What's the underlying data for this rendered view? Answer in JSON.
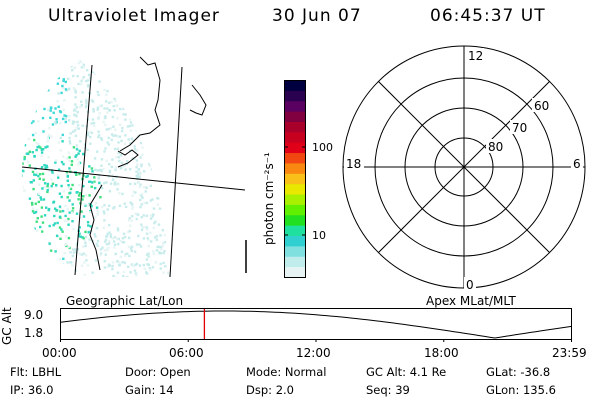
{
  "header": {
    "instrument": "Ultraviolet Imager",
    "date": "30 Jun 07",
    "time": "06:45:37 UT"
  },
  "colorbar": {
    "unit_label": "photon cm⁻²s⁻¹",
    "ticks": [
      "100",
      "10"
    ],
    "colors": [
      "#000040",
      "#2a0050",
      "#5a0060",
      "#800040",
      "#a8002a",
      "#c80020",
      "#e00018",
      "#f04810",
      "#f88810",
      "#f8c018",
      "#e8e800",
      "#a8f000",
      "#60f000",
      "#20e020",
      "#20e0a0",
      "#30d0d0",
      "#80e0e0",
      "#c0ecec",
      "#e8f4f4"
    ]
  },
  "polar_plot": {
    "mlt_labels": {
      "top": "12",
      "bottom": "0",
      "left": "18",
      "right": "6"
    },
    "mlat_labels": [
      "60",
      "70",
      "80"
    ]
  },
  "timeline": {
    "ylabel": "GC Alt",
    "yticks": [
      "9.0",
      "1.8"
    ],
    "left_caption": "Geographic Lat/Lon",
    "right_caption": "Apex MLat/MLT",
    "xticks": [
      "00:00",
      "06:00",
      "12:00",
      "18:00",
      "23:59"
    ],
    "current_time_fraction": 0.2816
  },
  "status": {
    "row1": [
      {
        "key": "Flt:",
        "value": "LBHL"
      },
      {
        "key": "Door:",
        "value": "Open"
      },
      {
        "key": "Mode:",
        "value": "Normal"
      },
      {
        "key": "GC Alt:",
        "value": "4.1 Re"
      },
      {
        "key": "GLat:",
        "value": "-36.8"
      }
    ],
    "row2": [
      {
        "key": "IP:",
        "value": "36.0"
      },
      {
        "key": "Gain:",
        "value": "14"
      },
      {
        "key": "Dsp:",
        "value": "2.0"
      },
      {
        "key": "Seq:",
        "value": "39"
      },
      {
        "key": "GLon:",
        "value": "135.6"
      }
    ]
  }
}
